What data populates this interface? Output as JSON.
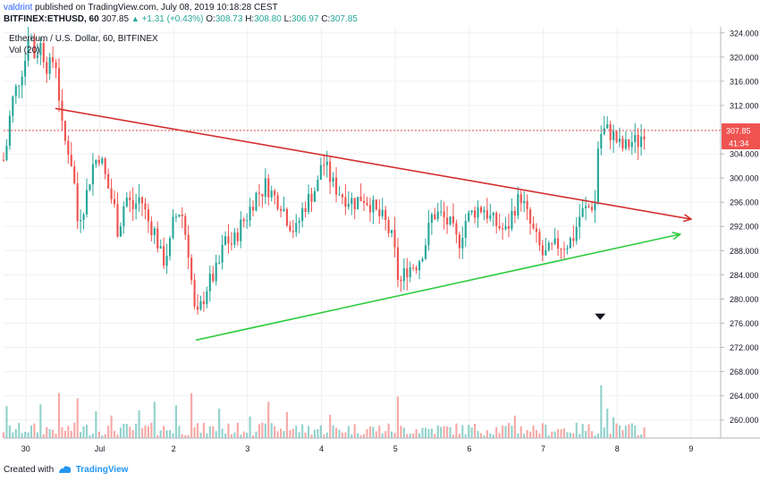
{
  "header": {
    "author": "valdrint",
    "published_text": "published on TradingView.com, July 08, 2019 10:18:28 CEST",
    "symbol": "BITFINEX:ETHUSD, 60",
    "last": "307.85",
    "change": "+1.31 (+0.43%)",
    "o_label": "O:",
    "o_value": "308.73",
    "h_label": "H:",
    "h_value": "308.80",
    "l_label": "L:",
    "l_value": "306.97",
    "c_label": "C:",
    "c_value": "307.85"
  },
  "footer": {
    "created_with": "Created with",
    "brand": "TradingView"
  },
  "chart_data": {
    "type": "candlestick",
    "title": "Ethereum / U.S. Dollar, 60, BITFINEX",
    "volume_label": "Vol (20)",
    "y_ticks": [
      260,
      264,
      268,
      272,
      276,
      280,
      284,
      288,
      292,
      296,
      300,
      304,
      308,
      312,
      316,
      320,
      324
    ],
    "ylim": [
      257,
      325
    ],
    "xlim": [
      -0.3,
      9.4
    ],
    "x_ticks": [
      {
        "label": "30",
        "day": 0
      },
      {
        "label": "Jul",
        "day": 1
      },
      {
        "label": "2",
        "day": 2
      },
      {
        "label": "3",
        "day": 3
      },
      {
        "label": "4",
        "day": 4
      },
      {
        "label": "5",
        "day": 5
      },
      {
        "label": "6",
        "day": 6
      },
      {
        "label": "7",
        "day": 7
      },
      {
        "label": "8",
        "day": 8
      },
      {
        "label": "9",
        "day": 9
      }
    ],
    "price_label": "307.85",
    "countdown_label": "41:34",
    "current_price": 307.85,
    "volume_max": 3.1,
    "price_path": [
      [
        -0.3,
        303
      ],
      [
        -0.25,
        306
      ],
      [
        -0.2,
        312
      ],
      [
        -0.1,
        316
      ],
      [
        0.0,
        320
      ],
      [
        0.05,
        326
      ],
      [
        0.1,
        320
      ],
      [
        0.2,
        322
      ],
      [
        0.3,
        318
      ],
      [
        0.4,
        320
      ],
      [
        0.5,
        307
      ],
      [
        0.6,
        304
      ],
      [
        0.65,
        300
      ],
      [
        0.7,
        293
      ],
      [
        0.8,
        296
      ],
      [
        0.9,
        302
      ],
      [
        1.0,
        304
      ],
      [
        1.1,
        299
      ],
      [
        1.2,
        295
      ],
      [
        1.25,
        291
      ],
      [
        1.35,
        297
      ],
      [
        1.45,
        295
      ],
      [
        1.55,
        297
      ],
      [
        1.65,
        293
      ],
      [
        1.75,
        291
      ],
      [
        1.85,
        286
      ],
      [
        1.95,
        289
      ],
      [
        2.0,
        293
      ],
      [
        2.1,
        295
      ],
      [
        2.2,
        288
      ],
      [
        2.25,
        282
      ],
      [
        2.3,
        276
      ],
      [
        2.35,
        278
      ],
      [
        2.45,
        282
      ],
      [
        2.55,
        284
      ],
      [
        2.6,
        285
      ],
      [
        2.7,
        290
      ],
      [
        2.8,
        289
      ],
      [
        2.9,
        292
      ],
      [
        3.0,
        294
      ],
      [
        3.1,
        297
      ],
      [
        3.2,
        298
      ],
      [
        3.25,
        299
      ],
      [
        3.35,
        297
      ],
      [
        3.45,
        296
      ],
      [
        3.55,
        293
      ],
      [
        3.65,
        291
      ],
      [
        3.75,
        295
      ],
      [
        3.85,
        297
      ],
      [
        3.95,
        299
      ],
      [
        4.0,
        303
      ],
      [
        4.05,
        302
      ],
      [
        4.15,
        299
      ],
      [
        4.3,
        297
      ],
      [
        4.45,
        296
      ],
      [
        4.55,
        297
      ],
      [
        4.65,
        296
      ],
      [
        4.75,
        294
      ],
      [
        4.85,
        293
      ],
      [
        4.95,
        290
      ],
      [
        5.0,
        287
      ],
      [
        5.05,
        282
      ],
      [
        5.15,
        285
      ],
      [
        5.3,
        286
      ],
      [
        5.4,
        289
      ],
      [
        5.5,
        294
      ],
      [
        5.6,
        294
      ],
      [
        5.75,
        292
      ],
      [
        5.85,
        289
      ],
      [
        5.95,
        293
      ],
      [
        6.1,
        295
      ],
      [
        6.2,
        295
      ],
      [
        6.3,
        293
      ],
      [
        6.4,
        292
      ],
      [
        6.5,
        291
      ],
      [
        6.6,
        295
      ],
      [
        6.7,
        297
      ],
      [
        6.8,
        293
      ],
      [
        6.9,
        290
      ],
      [
        7.0,
        287
      ],
      [
        7.1,
        288
      ],
      [
        7.2,
        289
      ],
      [
        7.3,
        289
      ],
      [
        7.4,
        290
      ],
      [
        7.5,
        294
      ],
      [
        7.6,
        295
      ],
      [
        7.7,
        296
      ],
      [
        7.75,
        307
      ],
      [
        7.85,
        308
      ],
      [
        7.95,
        307
      ],
      [
        8.0,
        306
      ],
      [
        8.05,
        305
      ],
      [
        8.1,
        305
      ],
      [
        8.2,
        306
      ],
      [
        8.3,
        306
      ],
      [
        8.35,
        308
      ],
      [
        8.4,
        307.85
      ]
    ],
    "volume_spikes": [
      [
        7.77,
        3.05
      ],
      [
        0.45,
        2.6
      ],
      [
        2.25,
        2.6
      ],
      [
        0.7,
        2.3
      ],
      [
        5.05,
        2.4
      ],
      [
        1.75,
        2.1
      ],
      [
        3.3,
        2.1
      ],
      [
        0.2,
        1.95
      ],
      [
        -0.25,
        1.85
      ],
      [
        2.05,
        1.9
      ],
      [
        1.55,
        1.6
      ],
      [
        0.95,
        1.55
      ],
      [
        2.6,
        1.7
      ],
      [
        3.55,
        1.5
      ],
      [
        4.1,
        1.35
      ],
      [
        6.6,
        1.3
      ],
      [
        7.85,
        1.7
      ],
      [
        7.95,
        1.2
      ],
      [
        1.15,
        1.3
      ],
      [
        3.05,
        1.25
      ]
    ],
    "trendlines": [
      {
        "color": "#d32f2f",
        "from": [
          0.4,
          311.5
        ],
        "to": [
          9.0,
          293.2
        ],
        "arrow": true
      },
      {
        "color": "#2ecc40",
        "from": [
          2.3,
          273.2
        ],
        "to": [
          8.85,
          290.7
        ],
        "arrow": true
      }
    ],
    "marker": {
      "shape": "down-triangle",
      "day": 7.77,
      "price": 277
    }
  }
}
